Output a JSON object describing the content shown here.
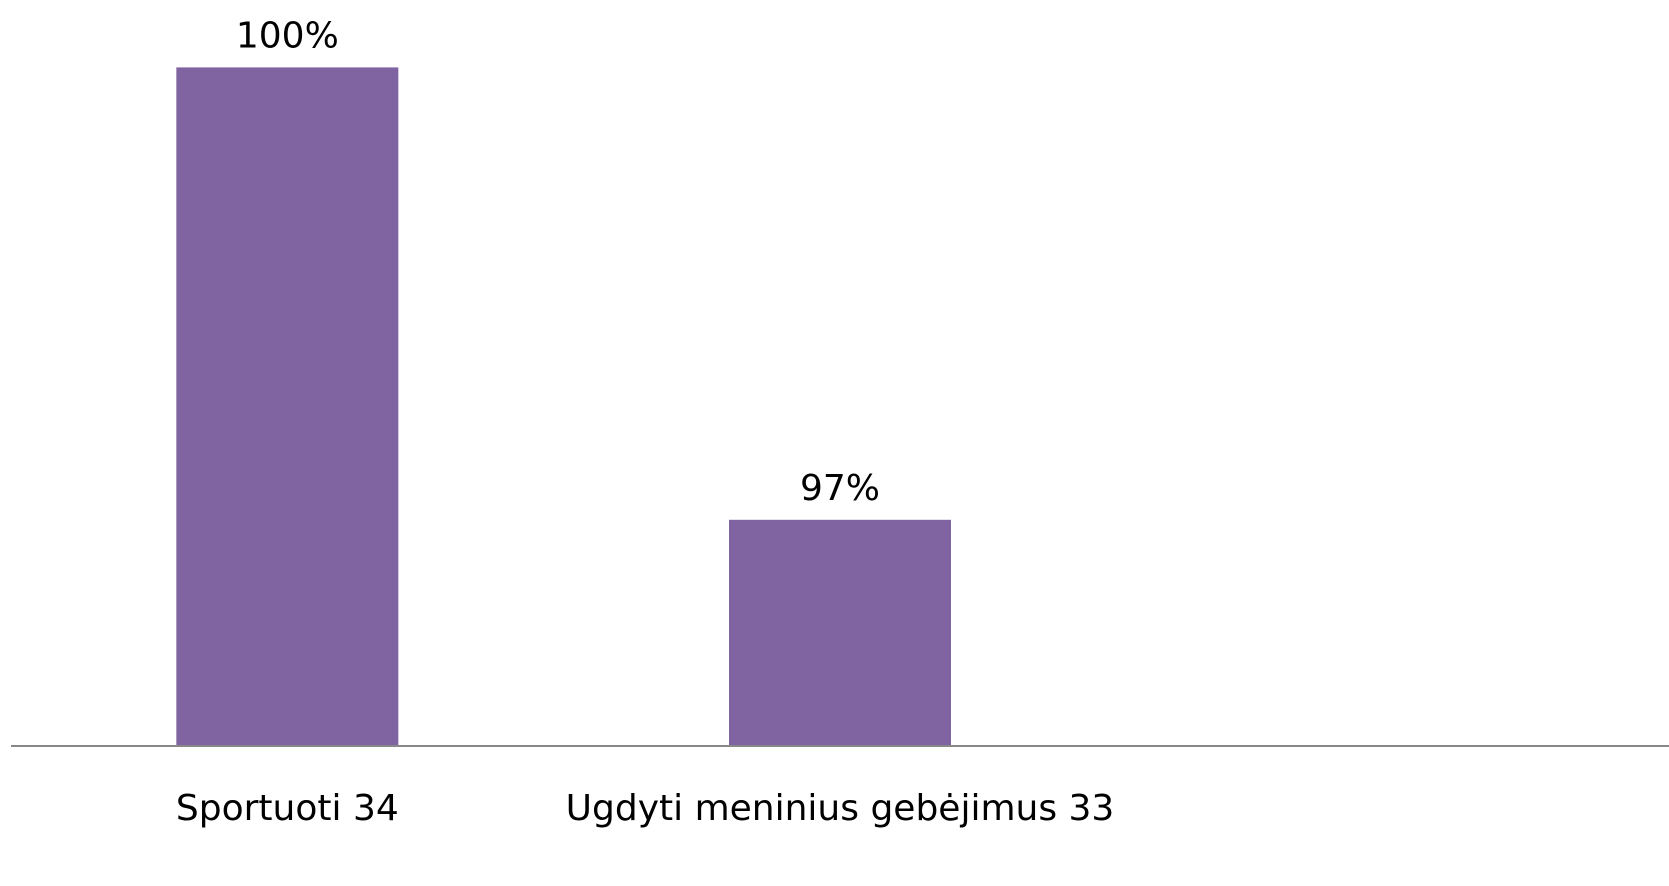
{
  "chart_data": {
    "type": "bar",
    "categories": [
      "Sportuoti 34",
      "Ugdyti meninius gebėjimus 33",
      null
    ],
    "values": [
      100,
      97,
      null
    ],
    "value_labels": [
      "100%",
      "97%",
      null
    ],
    "color": "#8064a2",
    "ylim": [
      95.5,
      100.5
    ]
  }
}
